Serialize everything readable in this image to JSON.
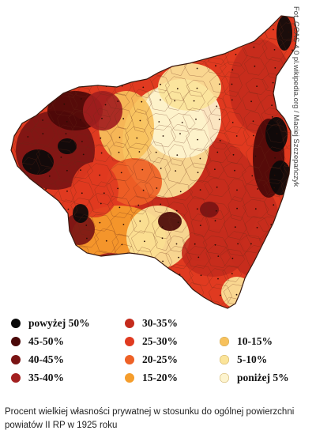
{
  "credit": "Fot. CCAS 4.0 pl.wikipedia.org / Maciej Szczepańczyk",
  "legend": [
    {
      "label": "powyżej 50%",
      "color": "#0a0a0a"
    },
    {
      "label": "45-50%",
      "color": "#4a0808"
    },
    {
      "label": "40-45%",
      "color": "#7a1414"
    },
    {
      "label": "35-40%",
      "color": "#a32020"
    },
    {
      "label": "30-35%",
      "color": "#c42b1c"
    },
    {
      "label": "25-30%",
      "color": "#e03a20"
    },
    {
      "label": "20-25%",
      "color": "#ee6126"
    },
    {
      "label": "15-20%",
      "color": "#f59d2c"
    },
    {
      "label": "10-15%",
      "color": "#f7c15c"
    },
    {
      "label": "5-10%",
      "color": "#fbe49a"
    },
    {
      "label": "poniżej 5%",
      "color": "#fdf4cf"
    }
  ],
  "caption": "Procent wielkiej własności prywatnej w stosunku do ogólnej powierzchni powiatów II RP w 1925 roku"
}
